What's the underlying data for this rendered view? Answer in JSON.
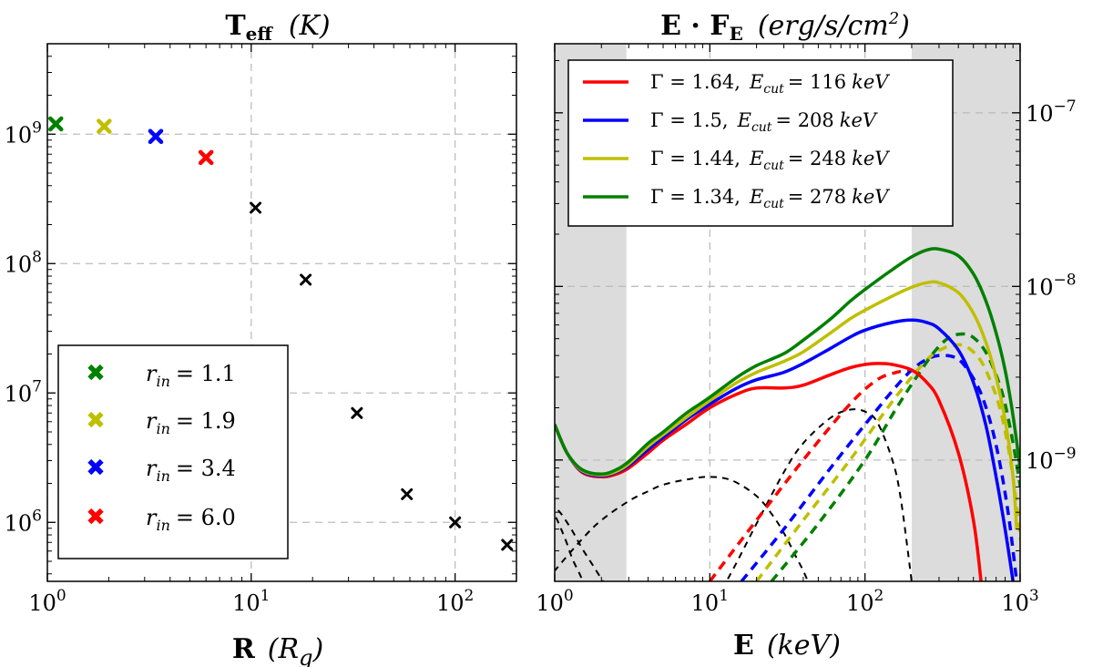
{
  "chart_data": [
    {
      "type": "scatter",
      "title": "Teff (K)",
      "title_parts": {
        "main": "T",
        "sub": "eff",
        "unit": "(K)"
      },
      "xlabel": "R (Rg)",
      "xlabel_parts": {
        "main": "R",
        "unit_pre": "(R",
        "unit_sub": "g",
        "unit_post": ")"
      },
      "ylabel": "",
      "xscale": "log",
      "yscale": "log",
      "xlim": [
        1,
        200
      ],
      "ylim": [
        350000,
        5000000000
      ],
      "xticks": [
        1,
        10,
        100
      ],
      "xtick_labels": [
        "10^0",
        "10^1",
        "10^2"
      ],
      "yticks": [
        1000000,
        10000000,
        100000000,
        1000000000
      ],
      "ytick_labels": [
        "10^6",
        "10^7",
        "10^8",
        "10^9"
      ],
      "grid": true,
      "legend_position": "lower-left",
      "colors": {
        "green": "#008000",
        "yellow": "#bfbf00",
        "blue": "#0000ff",
        "red": "#ff0000",
        "black": "#000000"
      },
      "series": [
        {
          "name": "r_in = 1.1",
          "label_var": "r",
          "label_sub": "in",
          "label_val": "= 1.1",
          "color": "#008000",
          "points": [
            {
              "x": 1.1,
              "y": 1200000000
            }
          ]
        },
        {
          "name": "r_in = 1.9",
          "label_var": "r",
          "label_sub": "in",
          "label_val": "= 1.9",
          "color": "#bfbf00",
          "points": [
            {
              "x": 1.9,
              "y": 1150000000
            }
          ]
        },
        {
          "name": "r_in = 3.4",
          "label_var": "r",
          "label_sub": "in",
          "label_val": "= 3.4",
          "color": "#0000ff",
          "points": [
            {
              "x": 3.4,
              "y": 960000000
            }
          ]
        },
        {
          "name": "r_in = 6.0",
          "label_var": "r",
          "label_sub": "in",
          "label_val": "= 6.0",
          "color": "#ff0000",
          "points": [
            {
              "x": 6.0,
              "y": 660000000
            }
          ]
        },
        {
          "name": "outer rings",
          "color": "#000000",
          "in_legend": false,
          "points": [
            {
              "x": 10.5,
              "y": 270000000
            },
            {
              "x": 18.5,
              "y": 75000000
            },
            {
              "x": 33,
              "y": 7000000
            },
            {
              "x": 58,
              "y": 1650000
            },
            {
              "x": 100,
              "y": 1000000
            },
            {
              "x": 180,
              "y": 670000
            }
          ]
        }
      ]
    },
    {
      "type": "line",
      "title": "E · FE (erg/s/cm2)",
      "title_parts": {
        "main": "E · F",
        "sub": "E",
        "unit": "(erg/s/cm",
        "unit_sup": "2",
        "unit_close": ")"
      },
      "xlabel": "E (keV)",
      "xlabel_parts": {
        "main": "E",
        "unit": "(keV)"
      },
      "xscale": "log",
      "yscale": "log",
      "xlim": [
        1,
        1000
      ],
      "ylim": [
        2e-10,
        2.5e-07
      ],
      "xticks": [
        1,
        10,
        100,
        1000
      ],
      "xtick_labels": [
        "10^0",
        "10^1",
        "10^2",
        "10^3"
      ],
      "yticks": [
        1e-09,
        1e-08,
        1e-07
      ],
      "ytick_labels": [
        "10^−9",
        "10^−8",
        "10^−7"
      ],
      "y_axis_side": "right",
      "grid": true,
      "shaded_bands": [
        {
          "x0": 1,
          "x1": 2.9
        },
        {
          "x0": 200,
          "x1": 1000
        }
      ],
      "legend_position": "top-left",
      "series": [
        {
          "name": "Γ = 1.64, Ecut = 116 keV",
          "gamma": "Γ = 1.64,",
          "ecut": "= 116",
          "unit": "keV",
          "color": "#ff0000",
          "style": "solid",
          "x": [
            1,
            1.2,
            1.5,
            2,
            2.5,
            3,
            4,
            5,
            7,
            10,
            15,
            20,
            30,
            40,
            60,
            80,
            100,
            120,
            150,
            200,
            250,
            300,
            400,
            500,
            560
          ],
          "y": [
            1.6e-09,
            1.1e-09,
            8.5e-10,
            8e-10,
            8.3e-10,
            9e-10,
            1.1e-09,
            1.3e-09,
            1.6e-09,
            2e-09,
            2.4e-09,
            2.6e-09,
            2.6e-09,
            2.7e-09,
            3.1e-09,
            3.4e-09,
            3.55e-09,
            3.6e-09,
            3.55e-09,
            3.3e-09,
            2.8e-09,
            2.2e-09,
            1.1e-09,
            4.5e-10,
            2e-10
          ]
        },
        {
          "name": "Γ = 1.5, Ecut = 208 keV",
          "gamma": "Γ = 1.5,",
          "ecut": "= 208",
          "unit": "keV",
          "color": "#0000ff",
          "style": "solid",
          "x": [
            1,
            1.2,
            1.5,
            2,
            2.5,
            3,
            4,
            5,
            7,
            10,
            15,
            20,
            30,
            40,
            60,
            80,
            100,
            150,
            200,
            250,
            300,
            400,
            500,
            600,
            700,
            800,
            900
          ],
          "y": [
            1.6e-09,
            1.1e-09,
            8.6e-10,
            8.1e-10,
            8.5e-10,
            9.3e-10,
            1.15e-09,
            1.35e-09,
            1.7e-09,
            2.1e-09,
            2.6e-09,
            2.9e-09,
            3.2e-09,
            3.6e-09,
            4.4e-09,
            5.1e-09,
            5.6e-09,
            6.2e-09,
            6.4e-09,
            6.2e-09,
            5.7e-09,
            4.3e-09,
            2.8e-09,
            1.6e-09,
            8e-10,
            4e-10,
            2e-10
          ]
        },
        {
          "name": "Γ = 1.44, Ecut = 248 keV",
          "gamma": "Γ = 1.44,",
          "ecut": "= 248",
          "unit": "keV",
          "color": "#bfbf00",
          "style": "solid",
          "x": [
            1,
            1.2,
            1.5,
            2,
            2.5,
            3,
            4,
            5,
            7,
            10,
            15,
            20,
            30,
            40,
            60,
            80,
            100,
            150,
            200,
            250,
            300,
            400,
            500,
            600,
            700,
            800,
            900,
            950
          ],
          "y": [
            1.6e-09,
            1.1e-09,
            8.7e-10,
            8.2e-10,
            8.6e-10,
            9.5e-10,
            1.2e-09,
            1.4e-09,
            1.75e-09,
            2.2e-09,
            2.8e-09,
            3.2e-09,
            3.7e-09,
            4.2e-09,
            5.4e-09,
            6.5e-09,
            7.3e-09,
            8.8e-09,
            9.9e-09,
            1.05e-08,
            1.05e-08,
            9.2e-09,
            7e-09,
            4.8e-09,
            3e-09,
            1.7e-09,
            8e-10,
            4e-10
          ]
        },
        {
          "name": "Γ = 1.34, Ecut = 278 keV",
          "gamma": "Γ = 1.34,",
          "ecut": "= 278",
          "unit": "keV",
          "color": "#008000",
          "style": "solid",
          "x": [
            1,
            1.2,
            1.5,
            2,
            2.5,
            3,
            4,
            5,
            7,
            10,
            15,
            20,
            30,
            40,
            60,
            80,
            100,
            150,
            200,
            250,
            300,
            400,
            500,
            600,
            700,
            800,
            900,
            1000
          ],
          "y": [
            1.6e-09,
            1.1e-09,
            8.8e-10,
            8.3e-10,
            8.8e-10,
            9.8e-10,
            1.25e-09,
            1.45e-09,
            1.85e-09,
            2.3e-09,
            3e-09,
            3.5e-09,
            4.1e-09,
            4.9e-09,
            6.5e-09,
            8.2e-09,
            9.6e-09,
            1.25e-08,
            1.48e-08,
            1.62e-08,
            1.64e-08,
            1.5e-08,
            1.18e-08,
            8.3e-09,
            5.4e-09,
            3.3e-09,
            1.8e-09,
            9e-10
          ]
        },
        {
          "name": "seed photons (dashed, a)",
          "color": "#000000",
          "style": "dashed",
          "in_legend": false,
          "x": [
            0.9,
            1,
            1.1,
            1.2,
            1.3,
            1.45,
            1.6
          ],
          "y": [
            5.2e-10,
            4.8e-10,
            4e-10,
            3.3e-10,
            2.7e-10,
            2.2e-10,
            1.8e-10
          ]
        },
        {
          "name": "seed photons (dashed, b)",
          "color": "#000000",
          "style": "dashed",
          "in_legend": false,
          "x": [
            0.9,
            1,
            1.1,
            1.3,
            1.5,
            1.8,
            2.2
          ],
          "y": [
            5.5e-10,
            5.3e-10,
            4.9e-10,
            3.9e-10,
            3.1e-10,
            2.4e-10,
            1.8e-10
          ]
        },
        {
          "name": "seed photons (dashed, c)",
          "color": "#000000",
          "style": "dashed",
          "in_legend": false,
          "x": [
            0.9,
            1,
            1.5,
            2,
            3,
            4,
            5,
            7,
            10,
            14,
            20,
            25,
            30,
            35,
            40,
            45
          ],
          "y": [
            2e-10,
            2.3e-10,
            3.5e-10,
            4.5e-10,
            5.8e-10,
            6.6e-10,
            7.2e-10,
            7.7e-10,
            8e-10,
            7.6e-10,
            6.2e-10,
            4.9e-10,
            3.8e-10,
            2.9e-10,
            2.3e-10,
            1.8e-10
          ]
        },
        {
          "name": "seed photons (dashed, d)",
          "color": "#000000",
          "style": "dashed",
          "in_legend": false,
          "x": [
            12,
            15,
            20,
            30,
            40,
            60,
            80,
            100,
            120,
            150,
            170,
            200
          ],
          "y": [
            1.8e-10,
            2.6e-10,
            4.3e-10,
            8.5e-10,
            1.25e-09,
            1.75e-09,
            1.95e-09,
            1.9e-09,
            1.65e-09,
            1e-09,
            6e-10,
            2e-10
          ]
        },
        {
          "name": "reflection (dashed red)",
          "color": "#ff0000",
          "style": "dashed",
          "in_legend": false,
          "x": [
            10,
            20,
            40,
            80,
            120,
            160,
            200
          ],
          "y": [
            2e-10,
            4.5e-10,
            1e-09,
            2.1e-09,
            2.9e-09,
            3.2e-09,
            3.3e-09
          ]
        },
        {
          "name": "reflection (dashed blue)",
          "color": "#0000ff",
          "style": "dashed",
          "in_legend": false,
          "x": [
            16,
            30,
            60,
            100,
            150,
            200,
            250,
            300,
            380,
            450,
            550,
            650,
            750,
            850,
            950
          ],
          "y": [
            2e-10,
            4e-10,
            9e-10,
            1.6e-09,
            2.5e-09,
            3.3e-09,
            3.8e-09,
            4e-09,
            3.9e-09,
            3.4e-09,
            2.5e-09,
            1.6e-09,
            9e-10,
            4.5e-10,
            2e-10
          ]
        },
        {
          "name": "reflection (dashed yellow)",
          "color": "#bfbf00",
          "style": "dashed",
          "in_legend": false,
          "x": [
            20,
            40,
            80,
            140,
            200,
            260,
            320,
            380,
            450,
            550,
            650,
            750,
            850,
            950,
            1000
          ],
          "y": [
            2e-10,
            4.5e-10,
            1e-09,
            2e-09,
            3e-09,
            3.9e-09,
            4.4e-09,
            4.6e-09,
            4.5e-09,
            3.8e-09,
            2.8e-09,
            1.9e-09,
            1.1e-09,
            5.5e-10,
            3.5e-10
          ]
        },
        {
          "name": "reflection (dashed green)",
          "color": "#008000",
          "style": "dashed",
          "in_legend": false,
          "x": [
            25,
            50,
            100,
            160,
            220,
            280,
            340,
            400,
            480,
            580,
            680,
            780,
            880,
            980,
            1000
          ],
          "y": [
            2e-10,
            4.3e-10,
            1e-09,
            2e-09,
            3.1e-09,
            4.2e-09,
            5e-09,
            5.3e-09,
            5.2e-09,
            4.4e-09,
            3.3e-09,
            2.3e-09,
            1.4e-09,
            8e-10,
            7e-10
          ]
        }
      ]
    }
  ]
}
